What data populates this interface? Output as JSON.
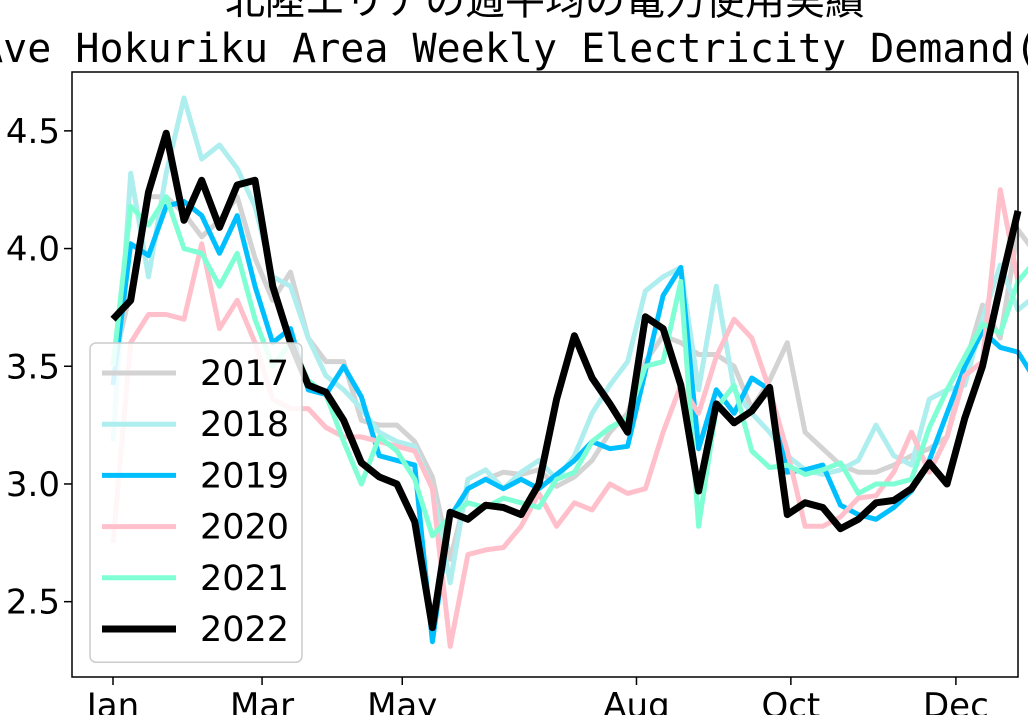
{
  "chart_data": {
    "type": "line",
    "title": "北陸エリアの週平均の電力使用実績",
    "subtitle": "Ave Hokuriku Area Weekly Electricity Demand(GW)",
    "xlabel": "",
    "ylabel": "",
    "x_ticks": [
      "Jan",
      "Mar",
      "May",
      "Aug",
      "Oct",
      "Dec"
    ],
    "x_tick_weeks": [
      1,
      9.4,
      17.3,
      30.5,
      39.2,
      48.5
    ],
    "xlim": [
      1,
      52
    ],
    "y_ticks": [
      "2.5",
      "3.0",
      "3.5",
      "4.0",
      "4.5"
    ],
    "ylim": [
      2.18,
      4.75
    ],
    "grid": false,
    "legend_position": "lower-left",
    "x_week_start": 1,
    "series": [
      {
        "name": "2017",
        "color": "#d3d3d3",
        "width": 5,
        "values": [
          3.5,
          3.82,
          4.22,
          4.22,
          4.15,
          4.05,
          4.12,
          4.22,
          3.96,
          3.78,
          3.9,
          3.62,
          3.52,
          3.52,
          3.27,
          3.25,
          3.25,
          3.18,
          3.03,
          2.68,
          2.98,
          3.02,
          3.05,
          3.04,
          3.06,
          2.99,
          3.03,
          3.1,
          3.22,
          3.3,
          3.52,
          3.63,
          3.6,
          3.55,
          3.55,
          3.5,
          3.32,
          3.44,
          3.6,
          3.22,
          3.15,
          3.08,
          3.05,
          3.05,
          3.08,
          3.12,
          3.15,
          3.2,
          3.5,
          3.76,
          3.62,
          4.08,
          3.98,
          3.83
        ]
      },
      {
        "name": "2018",
        "color": "#afeeee",
        "width": 5,
        "values": [
          3.18,
          4.32,
          3.88,
          4.32,
          4.64,
          4.38,
          4.44,
          4.34,
          4.18,
          3.88,
          3.84,
          3.62,
          3.46,
          3.4,
          3.32,
          3.22,
          3.18,
          3.16,
          2.98,
          2.58,
          3.02,
          3.06,
          2.98,
          3.05,
          3.1,
          3.02,
          3.12,
          3.3,
          3.42,
          3.52,
          3.82,
          3.88,
          3.92,
          3.4,
          3.84,
          3.4,
          3.3,
          3.22,
          3.12,
          3.06,
          3.04,
          3.06,
          3.1,
          3.25,
          3.12,
          3.08,
          3.36,
          3.4,
          3.42,
          3.7,
          3.93,
          3.74,
          3.8
        ]
      },
      {
        "name": "2019",
        "color": "#00bfff",
        "width": 5,
        "values": [
          3.42,
          4.02,
          3.97,
          4.18,
          4.2,
          4.14,
          3.98,
          4.14,
          3.84,
          3.6,
          3.66,
          3.4,
          3.38,
          3.5,
          3.37,
          3.12,
          3.1,
          3.08,
          2.33,
          2.86,
          2.98,
          3.02,
          2.98,
          3.02,
          2.98,
          3.04,
          3.1,
          3.18,
          3.15,
          3.16,
          3.48,
          3.8,
          3.92,
          3.15,
          3.4,
          3.3,
          3.45,
          3.4,
          3.05,
          3.06,
          3.08,
          2.91,
          2.87,
          2.85,
          2.9,
          2.97,
          3.1,
          3.3,
          3.5,
          3.65,
          3.58,
          3.56,
          3.44
        ]
      },
      {
        "name": "2020",
        "color": "#ffc0cb",
        "width": 5,
        "values": [
          2.75,
          3.6,
          3.72,
          3.72,
          3.7,
          4.02,
          3.66,
          3.78,
          3.6,
          3.36,
          3.32,
          3.32,
          3.24,
          3.2,
          3.2,
          3.18,
          3.16,
          3.14,
          2.98,
          2.31,
          2.7,
          2.72,
          2.73,
          2.82,
          2.96,
          2.82,
          2.92,
          2.89,
          3.0,
          2.96,
          2.98,
          3.22,
          3.42,
          3.3,
          3.54,
          3.7,
          3.62,
          3.4,
          3.14,
          2.82,
          2.82,
          2.86,
          2.94,
          2.95,
          3.05,
          3.22,
          3.05,
          3.2,
          3.46,
          3.52,
          4.25,
          3.86
        ]
      },
      {
        "name": "2021",
        "color": "#7fffd4",
        "width": 5,
        "values": [
          3.5,
          4.18,
          4.1,
          4.22,
          4.0,
          3.98,
          3.84,
          3.98,
          3.7,
          3.5,
          3.6,
          3.44,
          3.38,
          3.18,
          3.0,
          3.2,
          3.14,
          3.02,
          2.78,
          2.86,
          2.92,
          2.9,
          2.94,
          2.92,
          2.9,
          3.02,
          3.05,
          3.18,
          3.24,
          3.28,
          3.5,
          3.52,
          3.86,
          2.82,
          3.32,
          3.42,
          3.14,
          3.07,
          3.08,
          3.04,
          3.06,
          3.09,
          2.96,
          3.0,
          3.0,
          3.02,
          3.24,
          3.4,
          3.54,
          3.68,
          3.64,
          3.86,
          3.95
        ]
      },
      {
        "name": "2022",
        "color": "#000000",
        "width": 7,
        "values": [
          3.7,
          3.78,
          4.24,
          4.49,
          4.12,
          4.29,
          4.09,
          4.27,
          4.29,
          3.84,
          3.6,
          3.42,
          3.39,
          3.27,
          3.09,
          3.03,
          3.0,
          2.84,
          2.39,
          2.88,
          2.85,
          2.91,
          2.9,
          2.87,
          3.0,
          3.36,
          3.63,
          3.45,
          3.34,
          3.22,
          3.71,
          3.66,
          3.42,
          2.97,
          3.34,
          3.26,
          3.31,
          3.41,
          2.87,
          2.92,
          2.9,
          2.81,
          2.85,
          2.92,
          2.93,
          2.98,
          3.09,
          3.0,
          3.28,
          3.5,
          3.84,
          4.16
        ]
      }
    ]
  }
}
